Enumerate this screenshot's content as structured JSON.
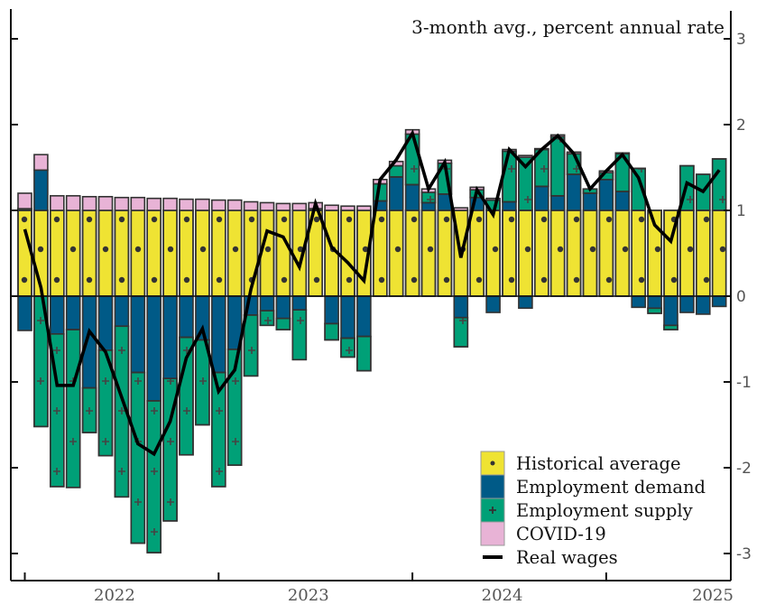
{
  "chart_data": {
    "type": "bar",
    "subtitle": "3-month avg., percent annual rate",
    "xlabel": "",
    "ylabel": "",
    "ylim": [
      -3.2,
      3.3
    ],
    "yticks": [
      "3",
      "2",
      "1",
      "0",
      "-1",
      "-2",
      "-3"
    ],
    "ytick_values": [
      3,
      2,
      1,
      0,
      -1,
      -2,
      -3
    ],
    "xtick_labels": [
      "2022",
      "2023",
      "2024",
      "2025"
    ],
    "grid": false,
    "legend_position": "bottom-right",
    "stacked": true,
    "categories": [
      "2022-01",
      "2022-02",
      "2022-03",
      "2022-04",
      "2022-05",
      "2022-06",
      "2022-07",
      "2022-08",
      "2022-09",
      "2022-10",
      "2022-11",
      "2022-12",
      "2023-01",
      "2023-02",
      "2023-03",
      "2023-04",
      "2023-05",
      "2023-06",
      "2023-07",
      "2023-08",
      "2023-09",
      "2023-10",
      "2023-11",
      "2023-12",
      "2024-01",
      "2024-02",
      "2024-03",
      "2024-04",
      "2024-05",
      "2024-06",
      "2024-07",
      "2024-08",
      "2024-09",
      "2024-10",
      "2024-11",
      "2024-12",
      "2025-01",
      "2025-02",
      "2025-03",
      "2025-04",
      "2025-05",
      "2025-06",
      "2025-07",
      "2025-08"
    ],
    "series": [
      {
        "name": "Historical average",
        "kind": "bar",
        "color": "#efe333",
        "pattern": "dots",
        "values": [
          1,
          1,
          1,
          1,
          1,
          1,
          1,
          1,
          1,
          1,
          1,
          1,
          1,
          1,
          1,
          1,
          1,
          1,
          1,
          1,
          1,
          1,
          1,
          1,
          1,
          1,
          1,
          1,
          1,
          1,
          1,
          1,
          1,
          1,
          1,
          1,
          1,
          1,
          1,
          1,
          1,
          1,
          1,
          1
        ]
      },
      {
        "name": "Employment demand",
        "kind": "bar",
        "color": "#005a87",
        "pattern": "none",
        "values": [
          -0.4,
          0.47,
          -0.44,
          -0.39,
          -1.07,
          -0.63,
          -0.35,
          -0.89,
          -1.22,
          -0.96,
          -0.48,
          -0.51,
          -0.89,
          -0.62,
          -0.22,
          -0.17,
          -0.26,
          -0.16,
          0,
          -0.32,
          -0.49,
          -0.47,
          0.11,
          0.39,
          0.3,
          0.09,
          0.19,
          -0.25,
          0.15,
          -0.19,
          0.1,
          -0.14,
          0.28,
          0.17,
          0.42,
          0.2,
          0.36,
          0.22,
          -0.13,
          -0.14,
          -0.34,
          -0.19,
          -0.21,
          -0.12
        ]
      },
      {
        "name": "Employment supply",
        "kind": "bar",
        "color": "#00a077",
        "pattern": "plus",
        "values": [
          0.02,
          -1.52,
          -1.78,
          -1.84,
          -0.52,
          -1.23,
          -1.99,
          -1.99,
          -1.77,
          -1.66,
          -1.37,
          -0.99,
          -1.33,
          -1.35,
          -0.71,
          -0.17,
          -0.13,
          -0.58,
          0.02,
          -0.19,
          -0.22,
          -0.4,
          0.2,
          0.13,
          0.59,
          0.12,
          0.36,
          -0.34,
          0.09,
          0.12,
          0.59,
          0.62,
          0.43,
          0.69,
          0.24,
          0.05,
          0.08,
          0.44,
          0.49,
          -0.06,
          -0.05,
          0.52,
          0.42,
          0.6
        ]
      },
      {
        "name": "COVID-19",
        "kind": "bar",
        "color": "#e8b3d6",
        "pattern": "none",
        "values": [
          0.18,
          0.18,
          0.17,
          0.17,
          0.16,
          0.16,
          0.15,
          0.15,
          0.14,
          0.14,
          0.13,
          0.13,
          0.12,
          0.12,
          0.1,
          0.09,
          0.08,
          0.08,
          0.07,
          0.06,
          0.05,
          0.05,
          0.05,
          0.05,
          0.05,
          0.04,
          0.035,
          0.03,
          0.03,
          0.02,
          0.02,
          0.02,
          0.01,
          0.02,
          0.02,
          0,
          0.02,
          0.01,
          0,
          0,
          0,
          0,
          0,
          0
        ]
      },
      {
        "name": "Real wages",
        "kind": "line",
        "color": "#000000",
        "values": [
          0.78,
          0.1,
          -1.04,
          -1.04,
          -0.41,
          -0.65,
          -1.18,
          -1.72,
          -1.84,
          -1.46,
          -0.72,
          -0.38,
          -1.11,
          -0.86,
          0.08,
          0.76,
          0.69,
          0.34,
          1.08,
          0.57,
          0.39,
          0.18,
          1.36,
          1.59,
          1.9,
          1.25,
          1.56,
          0.45,
          1.24,
          0.95,
          1.71,
          1.51,
          1.71,
          1.87,
          1.66,
          1.25,
          1.46,
          1.65,
          1.38,
          0.83,
          0.64,
          1.32,
          1.22,
          1.47
        ]
      }
    ]
  }
}
